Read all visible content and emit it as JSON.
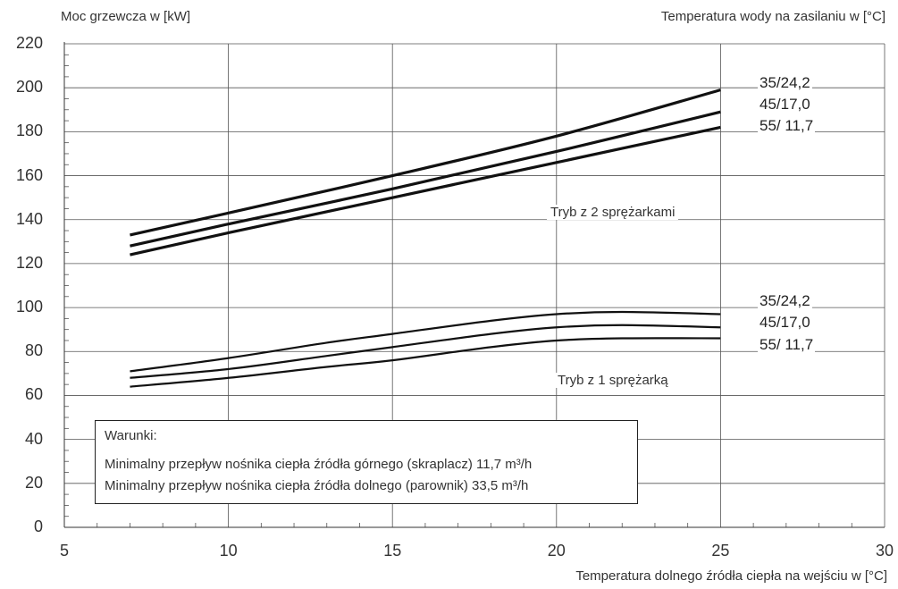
{
  "chart_data": {
    "type": "line",
    "ylabel": "Moc grzewcza w [kW]",
    "xlabel": "Temperatura dolnego źródła ciepła na wejściu w [°C]",
    "series_group_label": "Temperatura wody na zasilaniu w [°C]",
    "xlim": [
      5,
      30
    ],
    "ylim": [
      0,
      220
    ],
    "x_ticks": [
      "5",
      "10",
      "15",
      "20",
      "25",
      "30"
    ],
    "y_ticks": [
      "0",
      "20",
      "40",
      "60",
      "80",
      "100",
      "120",
      "140",
      "160",
      "180",
      "200",
      "220"
    ],
    "grid": true,
    "modes": [
      {
        "label": "Tryb z 2 sprężarkami",
        "series": [
          {
            "name": "35/24,2",
            "x": [
              7,
              10,
              15,
              20,
              25
            ],
            "y": [
              133,
              143,
              160,
              178,
              199
            ]
          },
          {
            "name": "45/17,0",
            "x": [
              7,
              10,
              15,
              20,
              25
            ],
            "y": [
              128,
              138,
              154,
              171,
              189
            ]
          },
          {
            "name": "55/ 11,7",
            "x": [
              7,
              10,
              15,
              20,
              25
            ],
            "y": [
              124,
              134,
              150,
              166,
              182
            ]
          }
        ]
      },
      {
        "label": "Tryb z 1 sprężarką",
        "series": [
          {
            "name": "35/24,2",
            "x": [
              7,
              10,
              13,
              15,
              18,
              20,
              22,
              25
            ],
            "y": [
              71,
              77,
              84,
              88,
              94,
              97,
              98,
              97
            ]
          },
          {
            "name": "45/17,0",
            "x": [
              7,
              10,
              13,
              15,
              18,
              20,
              22,
              25
            ],
            "y": [
              68,
              72,
              78,
              82,
              88,
              91,
              92,
              91
            ]
          },
          {
            "name": "55/ 11,7",
            "x": [
              7,
              10,
              13,
              15,
              18,
              20,
              22,
              25
            ],
            "y": [
              64,
              68,
              73,
              76,
              82,
              85,
              86,
              86
            ]
          }
        ]
      }
    ]
  },
  "conditions": {
    "title": "Warunki:",
    "line1": "Minimalny przepływ nośnika ciepła źródła górnego (skraplacz) 11,7 m³/h",
    "line2": "Minimalny przepływ nośnika ciepła źródła dolnego (parownik) 33,5 m³/h"
  }
}
